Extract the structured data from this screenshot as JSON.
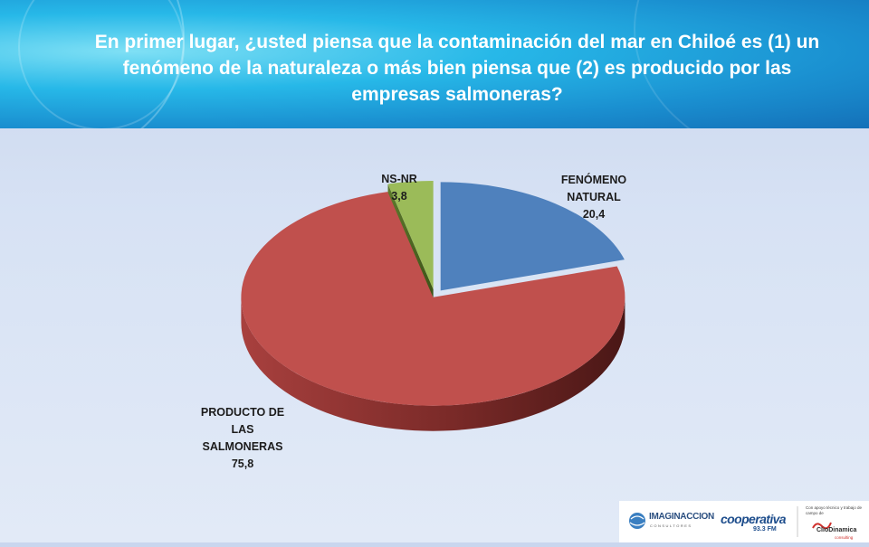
{
  "header": {
    "title": "En primer lugar, ¿usted piensa que la contaminación del mar en Chiloé es (1) un fenómeno de la naturaleza o más bien piensa que (2) es producido por las empresas salmoneras?"
  },
  "chart_data": {
    "type": "pie",
    "title": "",
    "slices": [
      {
        "label_lines": [
          "FENÓMENO",
          "NATURAL"
        ],
        "value": 20.4,
        "value_text": "20,4",
        "color": "#4f81bd"
      },
      {
        "label_lines": [
          "PRODUCTO DE",
          "LAS",
          "SALMONERAS"
        ],
        "value": 75.8,
        "value_text": "75,8",
        "color": "#c0504d"
      },
      {
        "label_lines": [
          "NS-NR"
        ],
        "value": 3.8,
        "value_text": "3,8",
        "color": "#9bbb59"
      }
    ]
  },
  "footer": {
    "logo1": "IMAGINACCION",
    "logo1_sub": "CONSULTORES",
    "logo2": "cooperativa",
    "logo2_sub": "93.3 FM",
    "logo3_note": "Con apoyo técnico y trabajo de campo de",
    "logo3": "ClioDinamica",
    "logo3_sub": "consulting"
  }
}
